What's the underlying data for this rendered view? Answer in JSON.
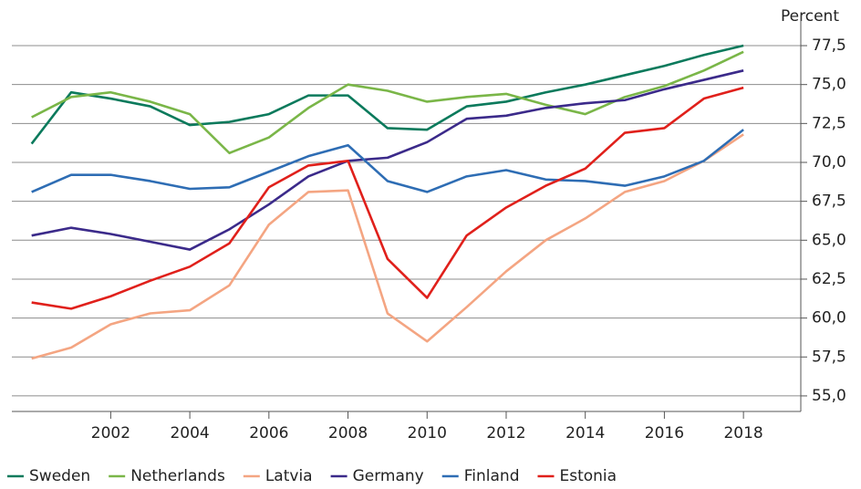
{
  "chart_data": {
    "type": "line",
    "y_label": "Percent",
    "x": [
      2000,
      2001,
      2002,
      2003,
      2004,
      2005,
      2006,
      2007,
      2008,
      2009,
      2010,
      2011,
      2012,
      2013,
      2014,
      2015,
      2016,
      2017,
      2018
    ],
    "xlim": [
      1999.5,
      2019.45
    ],
    "xticks": [
      2002,
      2004,
      2006,
      2008,
      2010,
      2012,
      2014,
      2016,
      2018
    ],
    "ylim": [
      54,
      79.5
    ],
    "yticks": [
      {
        "value": 55,
        "label": "55,0"
      },
      {
        "value": 57.5,
        "label": "57,5"
      },
      {
        "value": 60,
        "label": "60,0"
      },
      {
        "value": 62.5,
        "label": "62,5"
      },
      {
        "value": 65,
        "label": "65,0"
      },
      {
        "value": 67.5,
        "label": "67,5"
      },
      {
        "value": 70,
        "label": "70,0"
      },
      {
        "value": 72.5,
        "label": "72,5"
      },
      {
        "value": 75,
        "label": "75,0"
      },
      {
        "value": 77.5,
        "label": "77,5"
      }
    ],
    "grid": true,
    "legend": "bottom",
    "series": [
      {
        "name": "Sweden",
        "color": "#0b7a5c",
        "values": [
          71.2,
          74.5,
          74.1,
          73.6,
          72.4,
          72.6,
          73.1,
          74.3,
          74.3,
          72.2,
          72.1,
          73.6,
          73.9,
          74.5,
          75.0,
          75.6,
          76.2,
          76.9,
          77.5
        ]
      },
      {
        "name": "Netherlands",
        "color": "#7ab648",
        "values": [
          72.9,
          74.2,
          74.5,
          73.9,
          73.1,
          70.6,
          71.6,
          73.5,
          75.0,
          74.6,
          73.9,
          74.2,
          74.4,
          73.7,
          73.1,
          74.2,
          74.9,
          75.9,
          77.1
        ]
      },
      {
        "name": "Latvia",
        "color": "#f4a582",
        "values": [
          57.4,
          58.1,
          59.6,
          60.3,
          60.5,
          62.1,
          66.0,
          68.1,
          68.2,
          60.3,
          58.5,
          60.7,
          63.0,
          65.0,
          66.4,
          68.1,
          68.8,
          70.1,
          71.8
        ]
      },
      {
        "name": "Germany",
        "color": "#3b2a8a",
        "values": [
          65.3,
          65.8,
          65.4,
          64.9,
          64.4,
          65.7,
          67.3,
          69.1,
          70.1,
          70.3,
          71.3,
          72.8,
          73.0,
          73.5,
          73.8,
          74.0,
          74.7,
          75.3,
          75.9
        ]
      },
      {
        "name": "Finland",
        "color": "#2e6db4",
        "values": [
          68.1,
          69.2,
          69.2,
          68.8,
          68.3,
          68.4,
          69.4,
          70.4,
          71.1,
          68.8,
          68.1,
          69.1,
          69.5,
          68.9,
          68.8,
          68.5,
          69.1,
          70.1,
          72.1
        ]
      },
      {
        "name": "Estonia",
        "color": "#e0201b",
        "values": [
          61.0,
          60.6,
          61.4,
          62.4,
          63.3,
          64.8,
          68.4,
          69.8,
          70.1,
          63.8,
          61.3,
          65.3,
          67.1,
          68.5,
          69.6,
          71.9,
          72.2,
          74.1,
          74.8
        ]
      }
    ]
  }
}
